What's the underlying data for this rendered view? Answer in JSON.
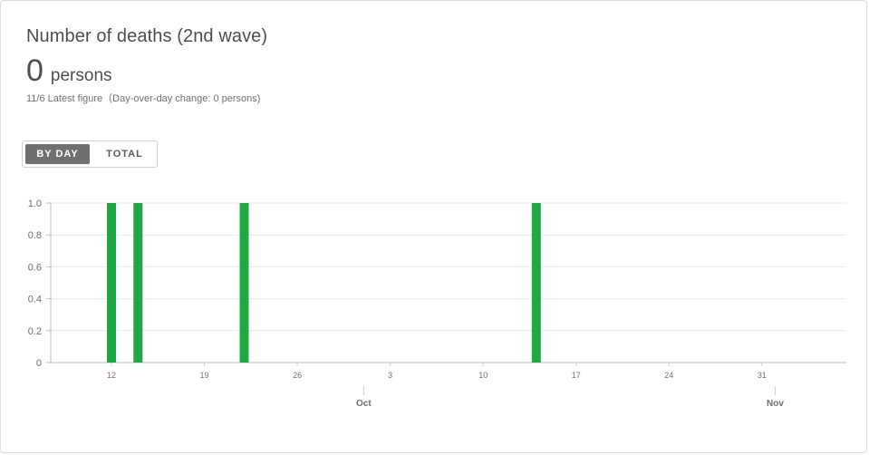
{
  "card": {
    "title": "Number of deaths (2nd wave)",
    "value": "0",
    "unit": "persons",
    "subtext": "11/6 Latest figure（Day-over-day change: 0 persons)"
  },
  "toggle": {
    "by_day_label": "BY DAY",
    "total_label": "TOTAL",
    "active": "BY DAY"
  },
  "colors": {
    "bar": "#1fa843",
    "toggle_active_bg": "#707070",
    "grid": "#e8e8e8",
    "text": "#707070"
  },
  "chart_data": {
    "type": "bar",
    "title": "",
    "xlabel": "",
    "ylabel": "",
    "ylim": [
      0,
      1.0
    ],
    "yticks": [
      "0",
      "0.2",
      "0.4",
      "0.6",
      "0.8",
      "1.0"
    ],
    "x_tick_labels": [
      "12",
      "19",
      "26",
      "3",
      "10",
      "17",
      "24",
      "31"
    ],
    "month_labels": [
      "Oct",
      "Nov"
    ],
    "dates": [
      "9/12",
      "9/14",
      "9/22",
      "10/14"
    ],
    "values": [
      1,
      1,
      1,
      1
    ],
    "grid": true,
    "legend": "none"
  }
}
